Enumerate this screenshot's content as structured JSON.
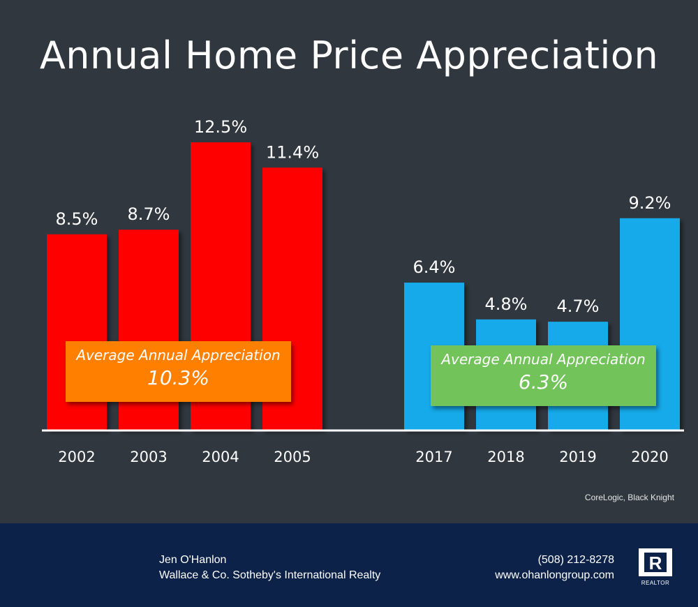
{
  "title": "Annual Home Price Appreciation",
  "colors": {
    "background": "#31373f",
    "period1_bar": "#ff0000",
    "period2_bar": "#12aaeb",
    "avg1_box": "#ff8000",
    "avg2_box": "#71c35a",
    "footer": "#0d2249",
    "text": "#ffffff"
  },
  "chart_data": {
    "type": "bar",
    "title": "Annual Home Price Appreciation",
    "xlabel": "",
    "ylabel": "",
    "ylim": [
      0,
      14
    ],
    "groups": [
      {
        "name": "2002-2005",
        "categories": [
          "2002",
          "2003",
          "2004",
          "2005"
        ],
        "values": [
          8.5,
          8.7,
          12.5,
          11.4
        ],
        "labels": [
          "8.5%",
          "8.7%",
          "12.5%",
          "11.4%"
        ],
        "color": "#ff0000",
        "average_label": "Average Annual Appreciation",
        "average_value": "10.3%"
      },
      {
        "name": "2017-2020",
        "categories": [
          "2017",
          "2018",
          "2019",
          "2020"
        ],
        "values": [
          6.4,
          4.8,
          4.7,
          9.2
        ],
        "labels": [
          "6.4%",
          "4.8%",
          "4.7%",
          "9.2%"
        ],
        "color": "#12aaeb",
        "average_label": "Average Annual Appreciation",
        "average_value": "6.3%"
      }
    ]
  },
  "source": "CoreLogic, Black Knight",
  "footer": {
    "name": "Jen O'Hanlon",
    "company": "Wallace & Co. Sotheby's International Realty",
    "phone": "(508) 212-8278",
    "website": "www.ohanlongroup.com",
    "logo_letter": "R",
    "logo_text": "REALTOR"
  }
}
